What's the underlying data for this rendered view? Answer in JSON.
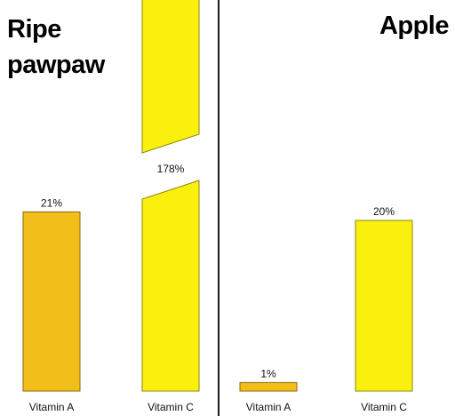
{
  "chart_data": [
    {
      "type": "bar",
      "title": "Ripe pawpaw",
      "title_lines": [
        "Ripe",
        "pawpaw"
      ],
      "categories": [
        "Vitamin A",
        "Vitamin C"
      ],
      "values": [
        21,
        178
      ],
      "value_labels": [
        "21%",
        "178%"
      ],
      "colors": [
        "#f2be1a",
        "#fbef0e"
      ],
      "ylim": [
        0,
        100
      ],
      "broken_axis": true,
      "grid": false,
      "legend": "none"
    },
    {
      "type": "bar",
      "title": "Apple",
      "title_lines": [
        "Apple"
      ],
      "categories": [
        "Vitamin A",
        "Vitamin C"
      ],
      "values": [
        1,
        20
      ],
      "value_labels": [
        "1%",
        "20%"
      ],
      "colors": [
        "#f2be1a",
        "#fbef0e"
      ],
      "ylim": [
        0,
        100
      ],
      "broken_axis": false,
      "grid": false,
      "legend": "none"
    }
  ]
}
